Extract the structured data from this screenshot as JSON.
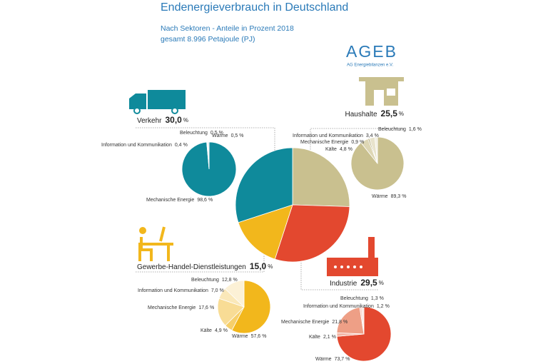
{
  "header": {
    "title": "Endenergieverbrauch in Deutschland",
    "subtitle": "Nach Sektoren - Anteile in Prozent 2018",
    "total": "gesamt 8.996 Petajoule (PJ)"
  },
  "logo": {
    "name": "AGEB",
    "org": "AG Energiebilanzen e.V."
  },
  "unit": "%",
  "chart_data": [
    {
      "type": "pie",
      "categories": [
        "Haushalte",
        "Industrie",
        "Gewerbe-Handel-Dienstleistungen",
        "Verkehr"
      ],
      "values": [
        25.5,
        29.5,
        15.0,
        30.0
      ],
      "value_labels": [
        "25,5",
        "29,5",
        "15,0",
        "30,0"
      ],
      "colors": [
        "#c9c08f",
        "#e3482f",
        "#f2b71c",
        "#0f8a9b"
      ]
    },
    {
      "type": "pie",
      "categories": [
        "Wärme",
        "Kälte",
        "Mechanische Energie",
        "Information und Kommunikation",
        "Beleuchtung"
      ],
      "values": [
        89.3,
        4.8,
        0.9,
        3.4,
        1.6
      ],
      "value_labels": [
        "89,3",
        "4,8",
        "0,9",
        "3,4",
        "1,6"
      ],
      "colors": [
        "#c9c08f",
        "#ddd6b4",
        "#b3aa78",
        "#e8e3cc",
        "#f1eee0"
      ]
    },
    {
      "type": "pie",
      "categories": [
        "Wärme",
        "Kälte",
        "Mechanische Energie",
        "Information und Kommunikation",
        "Beleuchtung"
      ],
      "values": [
        73.7,
        2.1,
        21.8,
        1.2,
        1.3
      ],
      "value_labels": [
        "73,7",
        "2,1",
        "21,8",
        "1,2",
        "1,3"
      ],
      "colors": [
        "#e3482f",
        "#f3b7a8",
        "#ee9f86",
        "#f7cfc4",
        "#fae3dc"
      ]
    },
    {
      "type": "pie",
      "categories": [
        "Wärme",
        "Kälte",
        "Mechanische Energie",
        "Information und Kommunikation",
        "Beleuchtung"
      ],
      "values": [
        57.6,
        4.9,
        17.6,
        7.0,
        12.8
      ],
      "value_labels": [
        "57,6",
        "4,9",
        "17,6",
        "7,0",
        "12,8"
      ],
      "colors": [
        "#f2b71c",
        "#f6cf6a",
        "#f8dc95",
        "#fae8b9",
        "#fcf1d6"
      ]
    },
    {
      "type": "pie",
      "categories": [
        "Mechanische Energie",
        "Information und Kommunikation",
        "Beleuchtung",
        "Wärme"
      ],
      "values": [
        98.6,
        0.4,
        0.5,
        0.5
      ],
      "value_labels": [
        "98,6",
        "0,4",
        "0,5",
        "0,5"
      ],
      "colors": [
        "#0f8a9b",
        "#bfe0e4",
        "#e3f1f3",
        "#9fd0d6"
      ]
    }
  ]
}
